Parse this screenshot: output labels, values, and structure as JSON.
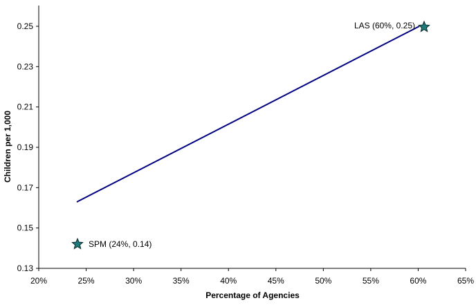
{
  "chart_data": {
    "type": "scatter",
    "title": "",
    "xlabel": "Percentage of Agencies",
    "ylabel": "Children per 1,000",
    "xlim": [
      0.2,
      0.65
    ],
    "ylim": [
      0.13,
      0.26
    ],
    "x_ticks": [
      "20%",
      "25%",
      "30%",
      "35%",
      "40%",
      "45%",
      "50%",
      "55%",
      "60%",
      "65%"
    ],
    "y_ticks": [
      "0.13",
      "0.15",
      "0.17",
      "0.19",
      "0.21",
      "0.23",
      "0.25"
    ],
    "grid": false,
    "legend": null,
    "series": [
      {
        "name": "Points",
        "marker": "star",
        "color": "#1f7a7a",
        "points": [
          {
            "label": "SPM (24%, 0.14)",
            "x": 0.24,
            "y": 0.142
          },
          {
            "label": "LAS (60%, 0.25)",
            "x": 0.606,
            "y": 0.25
          }
        ]
      },
      {
        "name": "Trend line",
        "type": "line",
        "color": "#000080",
        "points": [
          {
            "x": 0.24,
            "y": 0.163
          },
          {
            "x": 0.6,
            "y": 0.25
          }
        ]
      }
    ]
  },
  "colors": {
    "line": "#000080",
    "marker_fill": "#1f7a7a",
    "axis": "#000000"
  }
}
